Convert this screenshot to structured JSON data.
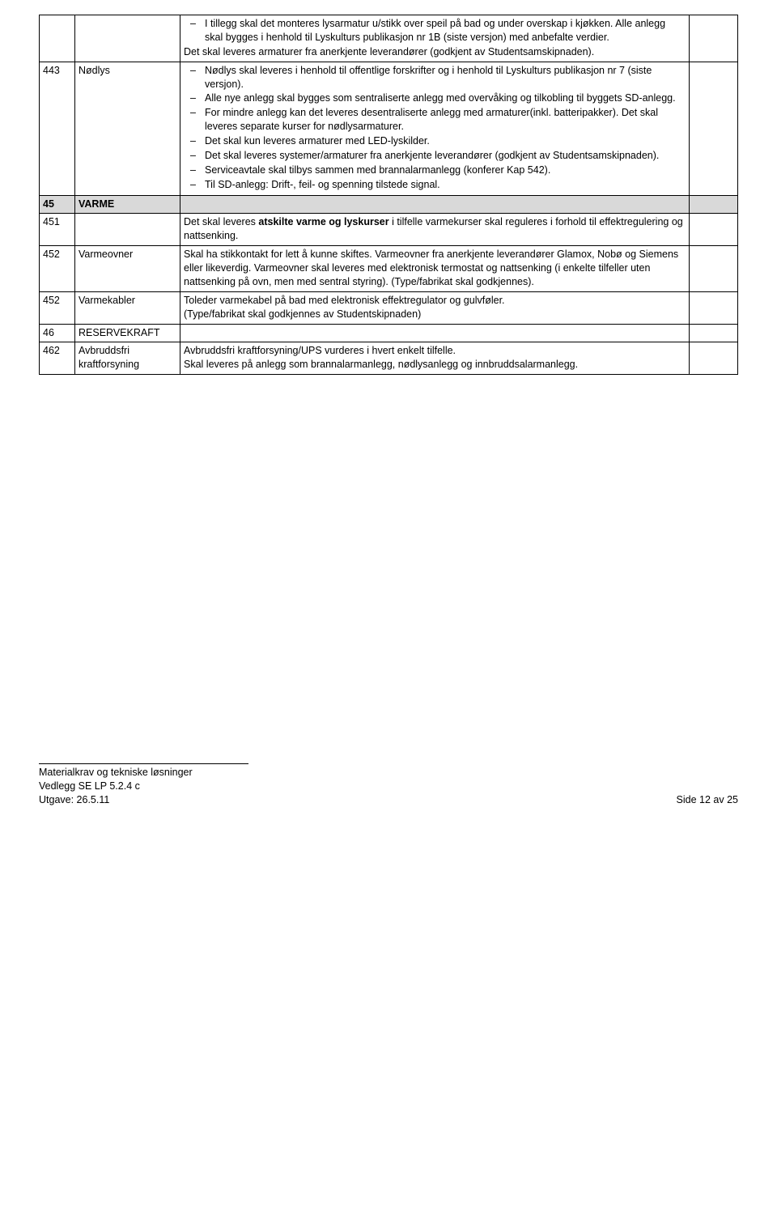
{
  "rows": {
    "r0": {
      "li1": "I tillegg skal det monteres lysarmatur u/stikk over speil på bad og under overskap i kjøkken. Alle anlegg skal bygges i henhold til Lyskulturs publikasjon nr 1B (siste versjon) med anbefalte verdier.",
      "p1": "Det skal leveres armaturer fra anerkjente leverandører (godkjent av Studentsamskipnaden)."
    },
    "r1": {
      "code": "443",
      "label": "Nødlys",
      "li1": "Nødlys skal leveres i henhold til offentlige forskrifter og i henhold til Lyskulturs publikasjon nr 7 (siste versjon).",
      "li2": "Alle nye anlegg skal bygges som sentraliserte anlegg med overvåking og tilkobling til byggets SD-anlegg.",
      "li3": "For mindre anlegg kan det leveres desentraliserte anlegg med armaturer(inkl. batteripakker). Det skal leveres separate kurser for nødlysarmaturer.",
      "li4": "Det skal kun leveres armaturer med LED-lyskilder.",
      "li5": "Det skal leveres systemer/armaturer fra anerkjente leverandører (godkjent av Studentsamskipnaden).",
      "li6": "Serviceavtale skal tilbys sammen med brannalarmanlegg (konferer Kap 542).",
      "li7": "Til SD-anlegg: Drift-, feil- og spenning tilstede signal."
    },
    "r2": {
      "code": "45",
      "label": "VARME"
    },
    "r3": {
      "code": "451",
      "p_before": "Det skal leveres ",
      "p_bold": "atskilte varme og lyskurser",
      "p_after": " i tilfelle varmekurser skal reguleres i forhold til effektregulering og nattsenking."
    },
    "r4": {
      "code": "452",
      "label": "Varmeovner",
      "p1": "Skal ha stikkontakt for lett å kunne skiftes. Varmeovner fra anerkjente leverandører Glamox, Nobø og Siemens eller likeverdig. Varmeovner skal leveres med elektronisk termostat og nattsenking (i enkelte tilfeller uten nattsenking på ovn, men med sentral styring). (Type/fabrikat skal godkjennes)."
    },
    "r5": {
      "code": "452",
      "label": "Varmekabler",
      "p1": "Toleder varmekabel på bad med elektronisk effektregulator og gulvføler.",
      "p2": "(Type/fabrikat skal godkjennes av Studentskipnaden)"
    },
    "r6": {
      "code": "46",
      "label": "RESERVEKRAFT"
    },
    "r7": {
      "code": "462",
      "label": "Avbruddsfri kraftforsyning",
      "p1": "Avbruddsfri kraftforsyning/UPS vurderes i hvert enkelt tilfelle.",
      "p2": "Skal leveres på anlegg som brannalarmanlegg, nødlysanlegg og innbruddsalarmanlegg."
    }
  },
  "footer": {
    "l1": "Materialkrav og tekniske løsninger",
    "l2": "Vedlegg SE LP 5.2.4 c",
    "l3": "Utgave: 26.5.11",
    "page": "Side 12 av 25"
  }
}
